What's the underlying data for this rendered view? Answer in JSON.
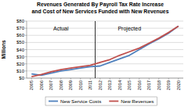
{
  "chart_data": {
    "type": "line",
    "title": [
      "Revenues Generated By Payroll Tax Rate Increase",
      "and Cost of New Services Funded with New Revenues"
    ],
    "y_label": "Millions",
    "x": [
      2005,
      2006,
      2007,
      2008,
      2009,
      2010,
      2011,
      2012,
      2013,
      2014,
      2015,
      2016,
      2017,
      2018,
      2019,
      2020
    ],
    "xlim": [
      2004.5,
      2020.5
    ],
    "xticks": [
      2005,
      2006,
      2007,
      2008,
      2009,
      2010,
      2011,
      2012,
      2013,
      2014,
      2015,
      2016,
      2017,
      2018,
      2019,
      2020
    ],
    "ylim": [
      0,
      80
    ],
    "yticks": [
      {
        "value": 0,
        "label": "$0"
      },
      {
        "value": 10,
        "label": "$10"
      },
      {
        "value": 20,
        "label": "$20"
      },
      {
        "value": 30,
        "label": "$30"
      },
      {
        "value": 40,
        "label": "$40"
      },
      {
        "value": 50,
        "label": "$50"
      },
      {
        "value": 60,
        "label": "$60"
      },
      {
        "value": 70,
        "label": "$70"
      },
      {
        "value": 80,
        "label": "$80"
      }
    ],
    "grid": true,
    "legend": "bottom",
    "series": [
      {
        "name": "New Service Costs",
        "color": "#4f81bd",
        "values": [
          6,
          4,
          7,
          10,
          12,
          14,
          16,
          17,
          22,
          27,
          32,
          40,
          48,
          55,
          63,
          73
        ]
      },
      {
        "name": "New Revenues",
        "color": "#c0504d",
        "values": [
          2,
          5,
          9,
          12,
          14,
          16,
          18,
          22,
          26,
          32,
          37,
          42,
          49,
          56,
          64,
          73
        ]
      }
    ],
    "vline": 2011.5,
    "annotations": [
      {
        "text": "Actual",
        "x": 2008
      },
      {
        "text": "Projected",
        "x": 2015
      }
    ]
  }
}
